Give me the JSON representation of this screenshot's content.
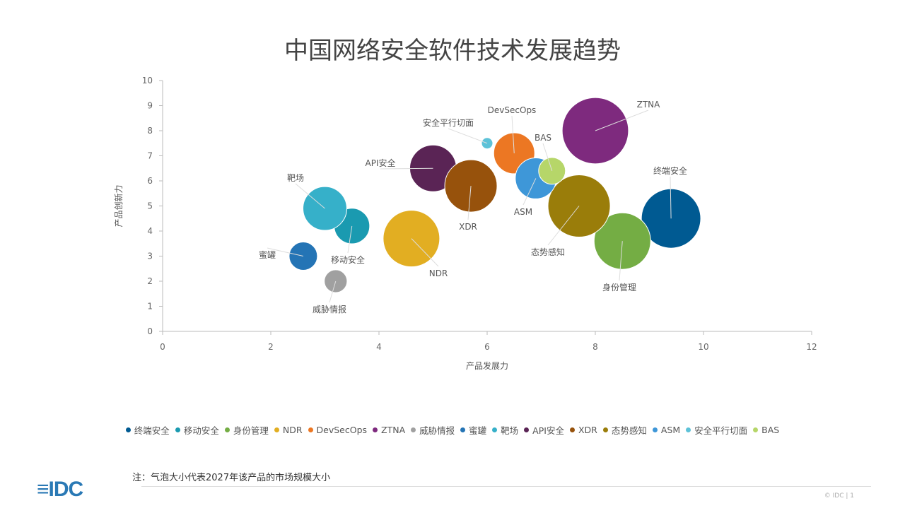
{
  "chart_data": {
    "type": "bubble",
    "title": "中国网络安全软件技术发展趋势",
    "xlabel": "产品发展力",
    "ylabel": "产品创新力",
    "xlim": [
      0,
      12
    ],
    "ylim": [
      0,
      10
    ],
    "xticks": [
      0,
      2,
      4,
      6,
      8,
      10,
      12
    ],
    "yticks": [
      0,
      1,
      2,
      3,
      4,
      5,
      6,
      7,
      8,
      9,
      10
    ],
    "grid": false,
    "legend_position": "bottom",
    "series": [
      {
        "name": "终端安全",
        "x": 9.4,
        "y": 4.5,
        "size": 17.6,
        "color": "#005A92"
      },
      {
        "name": "移动安全",
        "x": 3.5,
        "y": 4.2,
        "size": 6.3,
        "color": "#1A9AB0"
      },
      {
        "name": "身份管理",
        "x": 8.5,
        "y": 3.6,
        "size": 16,
        "color": "#74AD44"
      },
      {
        "name": "NDR",
        "x": 4.6,
        "y": 3.7,
        "size": 16,
        "color": "#E2AE22"
      },
      {
        "name": "DevSecOps",
        "x": 6.5,
        "y": 7.1,
        "size": 8.4,
        "color": "#EC7723"
      },
      {
        "name": "ZTNA",
        "x": 8.0,
        "y": 8.0,
        "size": 22,
        "color": "#7E2A7E"
      },
      {
        "name": "威胁情报",
        "x": 3.2,
        "y": 2.0,
        "size": 2.6,
        "color": "#A0A0A0"
      },
      {
        "name": "蜜罐",
        "x": 2.6,
        "y": 3.0,
        "size": 4,
        "color": "#2474B5"
      },
      {
        "name": "靶场",
        "x": 3.0,
        "y": 4.9,
        "size": 9.6,
        "color": "#36B0C9"
      },
      {
        "name": "API安全",
        "x": 5.0,
        "y": 6.5,
        "size": 10.9,
        "color": "#5A2455"
      },
      {
        "name": "XDR",
        "x": 5.7,
        "y": 5.8,
        "size": 13.7,
        "color": "#97520C"
      },
      {
        "name": "态势感知",
        "x": 7.7,
        "y": 5.0,
        "size": 19.4,
        "color": "#9A7D0A"
      },
      {
        "name": "ASM",
        "x": 6.9,
        "y": 6.1,
        "size": 8.4,
        "color": "#3E97D8"
      },
      {
        "name": "安全平行切面",
        "x": 6.0,
        "y": 7.5,
        "size": 0.64,
        "color": "#5DC2D8"
      },
      {
        "name": "BAS",
        "x": 7.2,
        "y": 6.4,
        "size": 3.6,
        "color": "#B6D669"
      }
    ],
    "note": "注：气泡大小代表2027年该产品的市场规模大小"
  },
  "footer": {
    "logo": "IDC",
    "copyright": "© IDC |",
    "page": "1"
  }
}
